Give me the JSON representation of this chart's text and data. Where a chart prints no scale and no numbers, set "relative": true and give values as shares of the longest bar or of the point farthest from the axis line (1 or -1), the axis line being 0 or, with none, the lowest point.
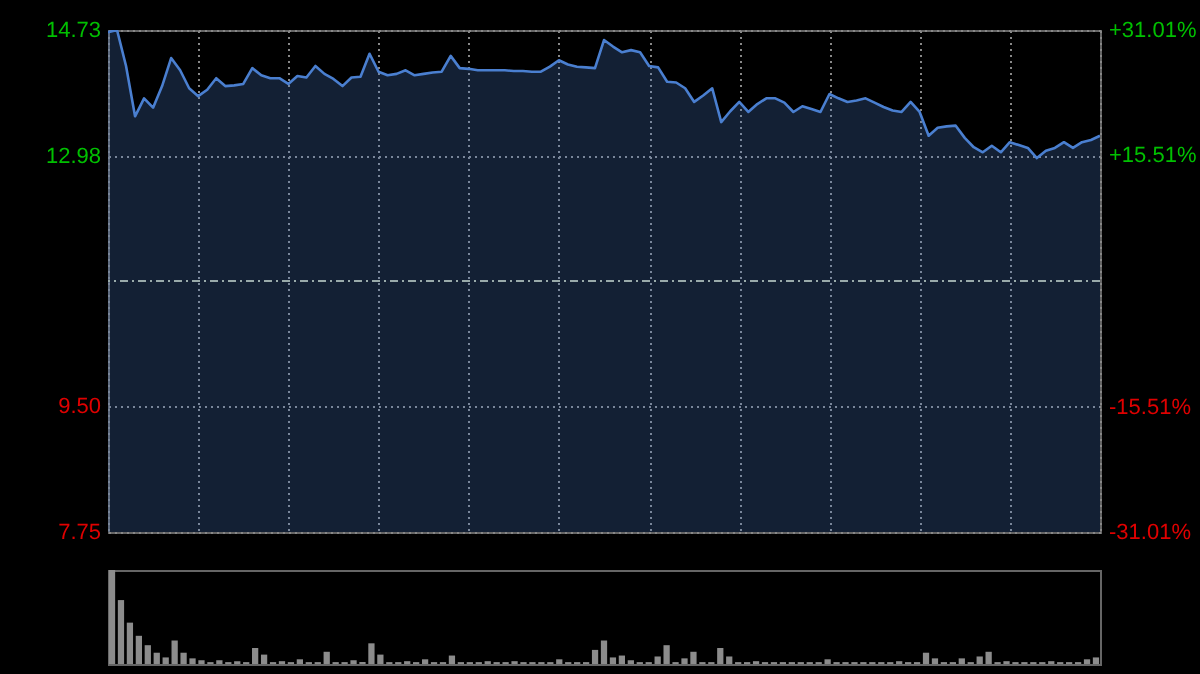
{
  "chart_data": [
    {
      "type": "area",
      "categories": [
        null,
        null,
        null,
        null,
        null,
        null,
        null,
        null,
        null,
        null,
        null,
        null,
        null,
        null,
        null,
        null,
        null,
        null,
        null,
        null,
        null,
        null,
        null,
        null,
        null,
        null,
        null,
        null,
        null,
        null,
        null,
        null,
        null,
        null,
        null,
        null,
        null,
        null,
        null,
        null,
        null,
        null,
        null,
        null,
        null,
        null,
        null,
        null,
        null,
        null,
        null,
        null,
        null,
        null,
        null,
        null,
        null,
        null,
        null,
        null,
        null,
        null,
        null,
        null,
        null,
        null,
        null,
        null,
        null,
        null,
        null,
        null,
        null,
        null,
        null,
        null,
        null,
        null,
        null,
        null,
        null,
        null,
        null,
        null,
        null,
        null,
        null,
        null,
        null,
        null,
        null,
        null,
        null,
        null,
        null,
        null,
        null,
        null,
        null,
        null,
        null,
        null,
        null,
        null,
        null,
        null,
        null,
        null,
        null,
        null,
        null
      ],
      "ylim": [
        7.75,
        14.73
      ],
      "yticks": [
        14.73,
        12.98,
        {
          "value": 9.5,
          "label": "9.50"
        },
        7.75
      ],
      "y2lim": [
        -31.01,
        31.01
      ],
      "y2ticks": [
        {
          "value": 31.01,
          "label": "+31.01%"
        },
        {
          "value": 15.51,
          "label": "+15.51%"
        },
        {
          "value": -15.51,
          "label": "-15.51%"
        },
        {
          "value": -31.01,
          "label": "-31.01%"
        }
      ],
      "grid": true,
      "tick_labels": "y",
      "ref_lines": [
        {
          "axis": "y2",
          "value": 0,
          "label": null
        }
      ],
      "series": [
        {
          "color": "#4a7fd0",
          "values": [
            14.7,
            14.73,
            14.23,
            13.53,
            13.78,
            13.65,
            13.95,
            14.34,
            14.17,
            13.92,
            13.81,
            13.9,
            14.06,
            13.95,
            13.96,
            13.98,
            14.2,
            14.1,
            14.06,
            14.06,
            13.98,
            14.09,
            14.07,
            14.23,
            14.12,
            14.05,
            13.95,
            14.07,
            14.08,
            14.4,
            14.15,
            14.1,
            14.12,
            14.17,
            14.1,
            14.12,
            14.14,
            14.15,
            14.37,
            14.2,
            14.19,
            14.17,
            14.17,
            14.17,
            14.17,
            14.16,
            14.16,
            14.15,
            14.15,
            14.22,
            14.31,
            14.25,
            14.22,
            14.21,
            14.2,
            14.59,
            14.5,
            14.42,
            14.45,
            14.42,
            14.23,
            14.21,
            14.01,
            14.0,
            13.92,
            13.73,
            13.82,
            13.92,
            13.45,
            13.6,
            13.73,
            13.59,
            13.7,
            13.78,
            13.78,
            13.72,
            13.59,
            13.67,
            13.63,
            13.59,
            13.84,
            13.78,
            13.73,
            13.75,
            13.78,
            13.72,
            13.66,
            13.61,
            13.59,
            13.73,
            13.59,
            13.26,
            13.37,
            13.39,
            13.4,
            13.23,
            13.1,
            13.03,
            13.12,
            13.03,
            13.17,
            13.13,
            13.09,
            12.95,
            13.05,
            13.09,
            13.17,
            13.09,
            13.17,
            13.2,
            13.26
          ]
        }
      ]
    },
    {
      "type": "bar",
      "relative": true,
      "tick_labels": false,
      "categories": [
        null,
        null,
        null,
        null,
        null,
        null,
        null,
        null,
        null,
        null,
        null,
        null,
        null,
        null,
        null,
        null,
        null,
        null,
        null,
        null,
        null,
        null,
        null,
        null,
        null,
        null,
        null,
        null,
        null,
        null,
        null,
        null,
        null,
        null,
        null,
        null,
        null,
        null,
        null,
        null,
        null,
        null,
        null,
        null,
        null,
        null,
        null,
        null,
        null,
        null,
        null,
        null,
        null,
        null,
        null,
        null,
        null,
        null,
        null,
        null,
        null,
        null,
        null,
        null,
        null,
        null,
        null,
        null,
        null,
        null,
        null,
        null,
        null,
        null,
        null,
        null,
        null,
        null,
        null,
        null,
        null,
        null,
        null,
        null,
        null,
        null,
        null,
        null,
        null,
        null,
        null,
        null,
        null,
        null,
        null,
        null,
        null,
        null,
        null,
        null,
        null,
        null,
        null,
        null,
        null,
        null,
        null,
        null,
        null,
        null,
        null
      ],
      "series": [
        {
          "color": "#8c8c8c",
          "values": [
            1.0,
            0.68,
            0.44,
            0.3,
            0.2,
            0.12,
            0.07,
            0.25,
            0.12,
            0.06,
            0.04,
            0.02,
            0.04,
            0.02,
            0.03,
            0.02,
            0.17,
            0.1,
            0.02,
            0.03,
            0.02,
            0.05,
            0.02,
            0.02,
            0.13,
            0.02,
            0.02,
            0.04,
            0.02,
            0.22,
            0.1,
            0.02,
            0.02,
            0.03,
            0.02,
            0.05,
            0.02,
            0.02,
            0.09,
            0.02,
            0.02,
            0.02,
            0.03,
            0.02,
            0.02,
            0.03,
            0.02,
            0.02,
            0.02,
            0.02,
            0.05,
            0.02,
            0.02,
            0.02,
            0.15,
            0.25,
            0.07,
            0.09,
            0.04,
            0.02,
            0.02,
            0.08,
            0.2,
            0.02,
            0.06,
            0.13,
            0.02,
            0.02,
            0.17,
            0.08,
            0.02,
            0.02,
            0.03,
            0.02,
            0.02,
            0.02,
            0.02,
            0.02,
            0.02,
            0.02,
            0.05,
            0.02,
            0.02,
            0.02,
            0.02,
            0.02,
            0.02,
            0.02,
            0.03,
            0.02,
            0.02,
            0.12,
            0.06,
            0.02,
            0.02,
            0.06,
            0.02,
            0.08,
            0.13,
            0.02,
            0.03,
            0.02,
            0.02,
            0.02,
            0.02,
            0.03,
            0.02,
            0.02,
            0.02,
            0.05,
            0.07
          ]
        }
      ]
    }
  ]
}
